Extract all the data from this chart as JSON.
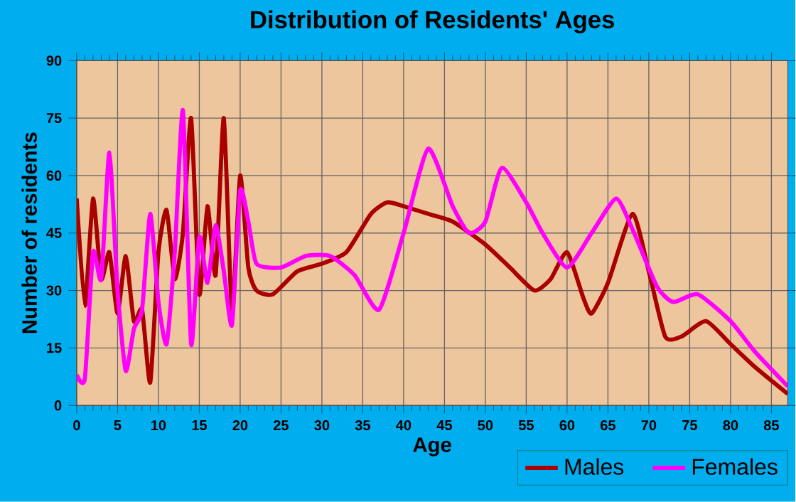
{
  "chart_data": {
    "type": "line",
    "title": "Distribution of Residents' Ages",
    "xlabel": "Age",
    "ylabel": "Number of residents",
    "xlim": [
      0,
      87
    ],
    "ylim": [
      0,
      90
    ],
    "xticks": [
      0,
      5,
      10,
      15,
      20,
      25,
      30,
      35,
      40,
      45,
      50,
      55,
      60,
      65,
      70,
      75,
      80,
      85
    ],
    "yticks": [
      0,
      15,
      30,
      45,
      60,
      75,
      90
    ],
    "grid": true,
    "legend": "bottom right",
    "marker": "none",
    "line_style": "solid",
    "series": [
      {
        "name": "Males",
        "color": "#aa0000",
        "x": [
          0,
          1,
          2,
          3,
          4,
          5,
          6,
          7,
          8,
          9,
          10,
          11,
          12,
          13,
          14,
          15,
          16,
          17,
          18,
          19,
          20,
          21,
          22,
          24,
          27,
          30,
          33,
          36,
          38,
          40,
          43,
          46,
          50,
          53,
          56,
          58,
          60,
          62,
          63,
          65,
          68,
          70,
          72,
          74,
          77,
          80,
          83,
          87
        ],
        "values": [
          54,
          26,
          54,
          33,
          40,
          24,
          39,
          22,
          25,
          6,
          40,
          51,
          33,
          45,
          75,
          29,
          52,
          34,
          75,
          24,
          60,
          36,
          30,
          29,
          35,
          37,
          40,
          50,
          53,
          52,
          50,
          48,
          42,
          36,
          30,
          33,
          40,
          28,
          24,
          32,
          50,
          35,
          18,
          18,
          22,
          16,
          10,
          3
        ]
      },
      {
        "name": "Females",
        "color": "#ff00ff",
        "x": [
          0,
          1,
          2,
          3,
          4,
          5,
          6,
          7,
          8,
          9,
          10,
          11,
          12,
          13,
          14,
          15,
          16,
          17,
          18,
          19,
          20,
          21,
          22,
          25,
          28,
          31,
          34,
          37,
          40,
          43,
          46,
          48,
          50,
          52,
          55,
          57,
          60,
          63,
          66,
          68,
          71,
          73,
          76,
          80,
          83,
          87
        ],
        "values": [
          8,
          7,
          40,
          33,
          66,
          30,
          9,
          20,
          25,
          50,
          27,
          16,
          40,
          77,
          16,
          44,
          32,
          47,
          35,
          21,
          56,
          48,
          37,
          36,
          39,
          39,
          34,
          25,
          45,
          67,
          52,
          45,
          48,
          62,
          53,
          45,
          36,
          45,
          54,
          46,
          31,
          27,
          29,
          22,
          14,
          5
        ]
      }
    ]
  }
}
